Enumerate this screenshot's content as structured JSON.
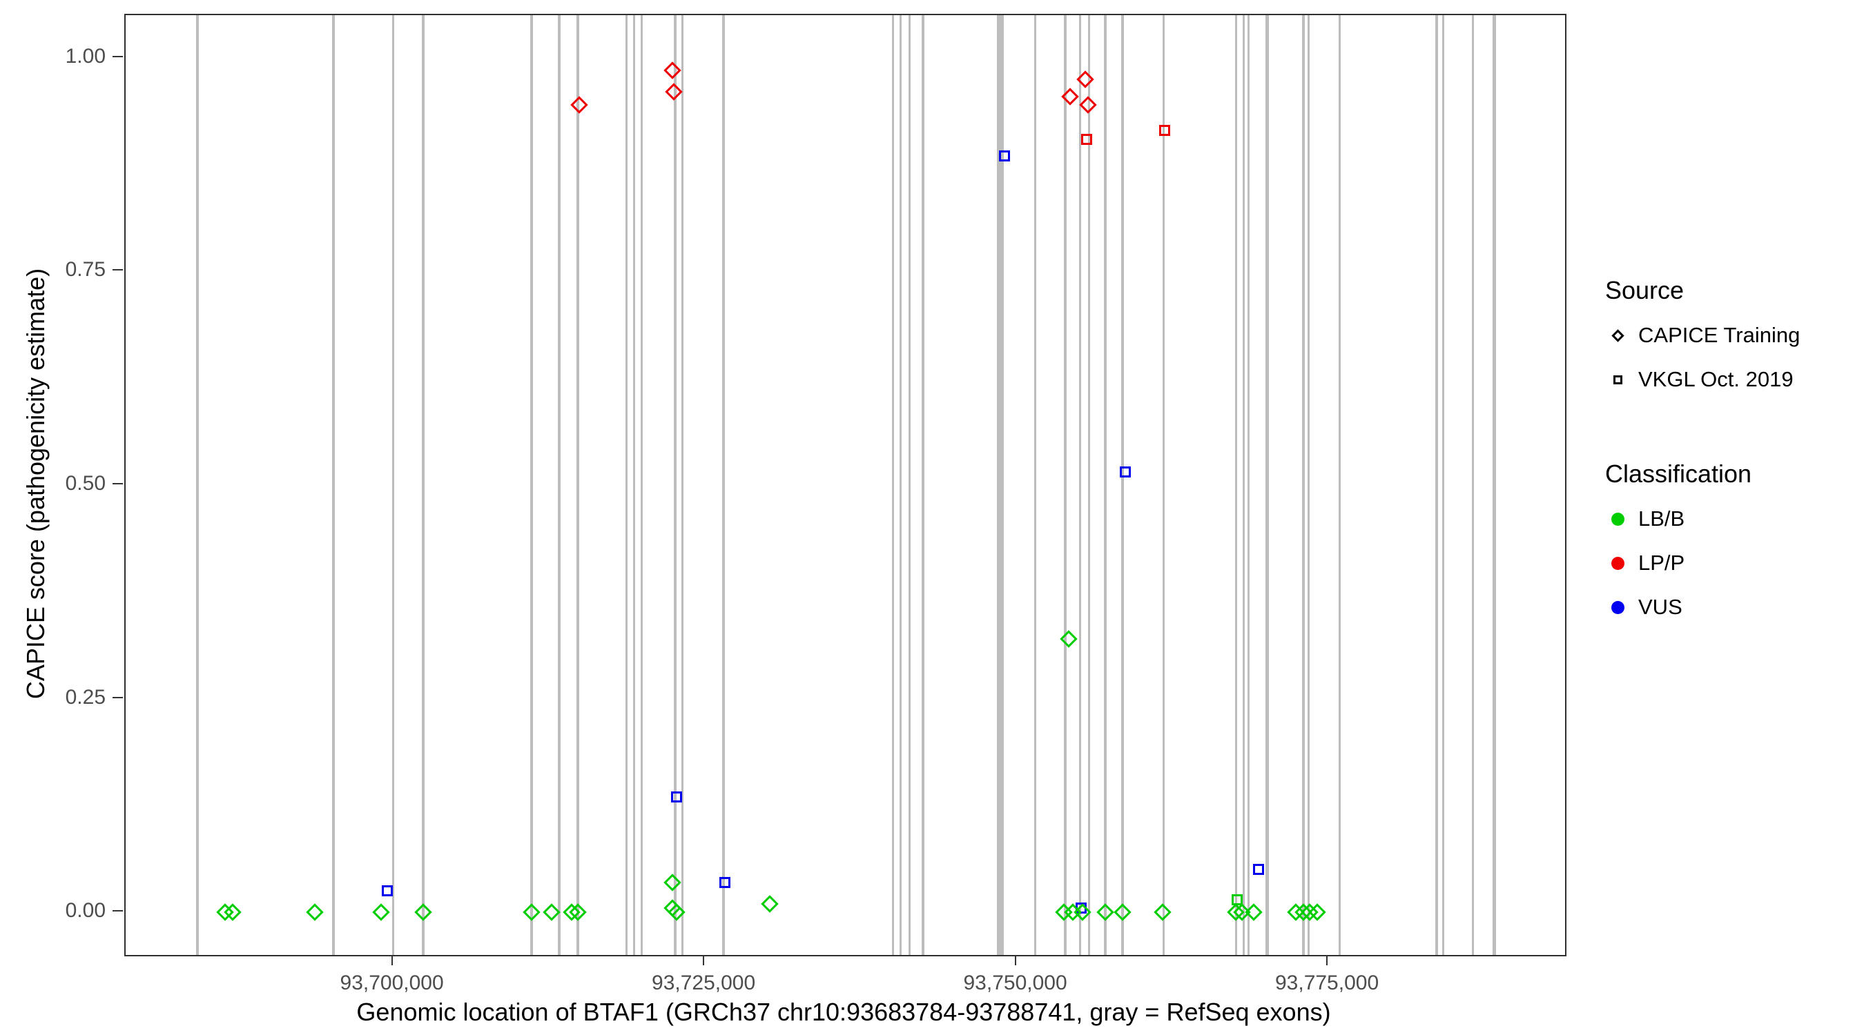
{
  "chart_data": {
    "type": "scatter",
    "title": "",
    "xlabel": "Genomic location of BTAF1 (GRCh37 chr10:93683784-93788741, gray = RefSeq exons)",
    "ylabel": "CAPICE score (pathogenicity estimate)",
    "xlim": [
      93678536,
      93793989
    ],
    "ylim": [
      -0.05,
      1.05
    ],
    "grid": "off",
    "x_ticks": [
      {
        "value": 93700000,
        "label": "93,700,000"
      },
      {
        "value": 93725000,
        "label": "93,725,000"
      },
      {
        "value": 93750000,
        "label": "93,750,000"
      },
      {
        "value": 93775000,
        "label": "93,775,000"
      }
    ],
    "y_ticks": [
      {
        "value": 0.0,
        "label": "0.00"
      },
      {
        "value": 0.25,
        "label": "0.25"
      },
      {
        "value": 0.5,
        "label": "0.50"
      },
      {
        "value": 0.75,
        "label": "0.75"
      },
      {
        "value": 1.0,
        "label": "1.00"
      }
    ],
    "colors": {
      "LB/B": "#00CD00",
      "LP/P": "#EE0000",
      "VUS": "#0000EE",
      "exon": "#BDBDBD"
    },
    "exons": [
      {
        "pos": 93684300,
        "width_bp": 200
      },
      {
        "pos": 93695200,
        "width_bp": 200
      },
      {
        "pos": 93700000,
        "width_bp": 200
      },
      {
        "pos": 93702400,
        "width_bp": 200
      },
      {
        "pos": 93711100,
        "width_bp": 200
      },
      {
        "pos": 93713300,
        "width_bp": 200
      },
      {
        "pos": 93714800,
        "width_bp": 200
      },
      {
        "pos": 93718700,
        "width_bp": 200
      },
      {
        "pos": 93719300,
        "width_bp": 150
      },
      {
        "pos": 93719900,
        "width_bp": 150
      },
      {
        "pos": 93722600,
        "width_bp": 200
      },
      {
        "pos": 93723200,
        "width_bp": 150
      },
      {
        "pos": 93726500,
        "width_bp": 200
      },
      {
        "pos": 93740100,
        "width_bp": 150
      },
      {
        "pos": 93740700,
        "width_bp": 150
      },
      {
        "pos": 93741400,
        "width_bp": 150
      },
      {
        "pos": 93742500,
        "width_bp": 200
      },
      {
        "pos": 93748700,
        "width_bp": 550
      },
      {
        "pos": 93751500,
        "width_bp": 200
      },
      {
        "pos": 93753900,
        "width_bp": 200
      },
      {
        "pos": 93755100,
        "width_bp": 200
      },
      {
        "pos": 93755800,
        "width_bp": 150
      },
      {
        "pos": 93757100,
        "width_bp": 200
      },
      {
        "pos": 93758500,
        "width_bp": 200
      },
      {
        "pos": 93761800,
        "width_bp": 200
      },
      {
        "pos": 93767600,
        "width_bp": 200
      },
      {
        "pos": 93768200,
        "width_bp": 150
      },
      {
        "pos": 93768600,
        "width_bp": 150
      },
      {
        "pos": 93770100,
        "width_bp": 250
      },
      {
        "pos": 93773000,
        "width_bp": 200
      },
      {
        "pos": 93773400,
        "width_bp": 150
      },
      {
        "pos": 93775900,
        "width_bp": 200
      },
      {
        "pos": 93783700,
        "width_bp": 200
      },
      {
        "pos": 93784200,
        "width_bp": 150
      },
      {
        "pos": 93786600,
        "width_bp": 200
      },
      {
        "pos": 93788300,
        "width_bp": 250
      }
    ],
    "points": [
      {
        "x": 93714900,
        "y": 0.945,
        "source": "CAPICE Training",
        "cls": "LP/P"
      },
      {
        "x": 93722400,
        "y": 0.985,
        "source": "CAPICE Training",
        "cls": "LP/P"
      },
      {
        "x": 93722500,
        "y": 0.96,
        "source": "CAPICE Training",
        "cls": "LP/P"
      },
      {
        "x": 93754300,
        "y": 0.955,
        "source": "CAPICE Training",
        "cls": "LP/P"
      },
      {
        "x": 93755500,
        "y": 0.975,
        "source": "CAPICE Training",
        "cls": "LP/P"
      },
      {
        "x": 93755700,
        "y": 0.945,
        "source": "CAPICE Training",
        "cls": "LP/P"
      },
      {
        "x": 93755600,
        "y": 0.905,
        "source": "VKGL Oct. 2019",
        "cls": "LP/P"
      },
      {
        "x": 93761900,
        "y": 0.915,
        "source": "VKGL Oct. 2019",
        "cls": "LP/P"
      },
      {
        "x": 93749000,
        "y": 0.885,
        "source": "VKGL Oct. 2019",
        "cls": "VUS"
      },
      {
        "x": 93758700,
        "y": 0.515,
        "source": "VKGL Oct. 2019",
        "cls": "VUS"
      },
      {
        "x": 93722700,
        "y": 0.135,
        "source": "VKGL Oct. 2019",
        "cls": "VUS"
      },
      {
        "x": 93726600,
        "y": 0.035,
        "source": "VKGL Oct. 2019",
        "cls": "VUS"
      },
      {
        "x": 93699500,
        "y": 0.025,
        "source": "VKGL Oct. 2019",
        "cls": "VUS"
      },
      {
        "x": 93769400,
        "y": 0.05,
        "source": "VKGL Oct. 2019",
        "cls": "VUS"
      },
      {
        "x": 93755200,
        "y": 0.005,
        "source": "VKGL Oct. 2019",
        "cls": "VUS"
      },
      {
        "x": 93754200,
        "y": 0.32,
        "source": "CAPICE Training",
        "cls": "LB/B"
      },
      {
        "x": 93767700,
        "y": 0.015,
        "source": "VKGL Oct. 2019",
        "cls": "LB/B"
      },
      {
        "x": 93686500,
        "y": 0.0,
        "source": "CAPICE Training",
        "cls": "LB/B"
      },
      {
        "x": 93687100,
        "y": 0.0,
        "source": "CAPICE Training",
        "cls": "LB/B"
      },
      {
        "x": 93693700,
        "y": 0.0,
        "source": "CAPICE Training",
        "cls": "LB/B"
      },
      {
        "x": 93699000,
        "y": 0.0,
        "source": "CAPICE Training",
        "cls": "LB/B"
      },
      {
        "x": 93702400,
        "y": 0.0,
        "source": "CAPICE Training",
        "cls": "LB/B"
      },
      {
        "x": 93711100,
        "y": 0.0,
        "source": "CAPICE Training",
        "cls": "LB/B"
      },
      {
        "x": 93712700,
        "y": 0.0,
        "source": "CAPICE Training",
        "cls": "LB/B"
      },
      {
        "x": 93714300,
        "y": 0.0,
        "source": "CAPICE Training",
        "cls": "LB/B"
      },
      {
        "x": 93714800,
        "y": 0.0,
        "source": "CAPICE Training",
        "cls": "LB/B"
      },
      {
        "x": 93722400,
        "y": 0.035,
        "source": "CAPICE Training",
        "cls": "LB/B"
      },
      {
        "x": 93722400,
        "y": 0.005,
        "source": "CAPICE Training",
        "cls": "LB/B"
      },
      {
        "x": 93722700,
        "y": 0.0,
        "source": "CAPICE Training",
        "cls": "LB/B"
      },
      {
        "x": 93730200,
        "y": 0.01,
        "source": "CAPICE Training",
        "cls": "LB/B"
      },
      {
        "x": 93753800,
        "y": 0.0,
        "source": "CAPICE Training",
        "cls": "LB/B"
      },
      {
        "x": 93754500,
        "y": 0.0,
        "source": "CAPICE Training",
        "cls": "LB/B"
      },
      {
        "x": 93755300,
        "y": 0.0,
        "source": "CAPICE Training",
        "cls": "LB/B"
      },
      {
        "x": 93757100,
        "y": 0.0,
        "source": "CAPICE Training",
        "cls": "LB/B"
      },
      {
        "x": 93758500,
        "y": 0.0,
        "source": "CAPICE Training",
        "cls": "LB/B"
      },
      {
        "x": 93761700,
        "y": 0.0,
        "source": "CAPICE Training",
        "cls": "LB/B"
      },
      {
        "x": 93767600,
        "y": 0.0,
        "source": "CAPICE Training",
        "cls": "LB/B"
      },
      {
        "x": 93768100,
        "y": 0.0,
        "source": "CAPICE Training",
        "cls": "LB/B"
      },
      {
        "x": 93769000,
        "y": 0.0,
        "source": "CAPICE Training",
        "cls": "LB/B"
      },
      {
        "x": 93772400,
        "y": 0.0,
        "source": "CAPICE Training",
        "cls": "LB/B"
      },
      {
        "x": 93773000,
        "y": 0.0,
        "source": "CAPICE Training",
        "cls": "LB/B"
      },
      {
        "x": 93773500,
        "y": 0.0,
        "source": "CAPICE Training",
        "cls": "LB/B"
      },
      {
        "x": 93774100,
        "y": 0.0,
        "source": "CAPICE Training",
        "cls": "LB/B"
      }
    ],
    "legend": {
      "source_title": "Source",
      "source_items": [
        {
          "label": "CAPICE Training",
          "shape": "diamond"
        },
        {
          "label": "VKGL Oct. 2019",
          "shape": "square"
        }
      ],
      "class_title": "Classification",
      "class_items": [
        {
          "label": "LB/B",
          "color": "#00CD00"
        },
        {
          "label": "LP/P",
          "color": "#EE0000"
        },
        {
          "label": "VUS",
          "color": "#0000EE"
        }
      ],
      "position": "right"
    }
  }
}
